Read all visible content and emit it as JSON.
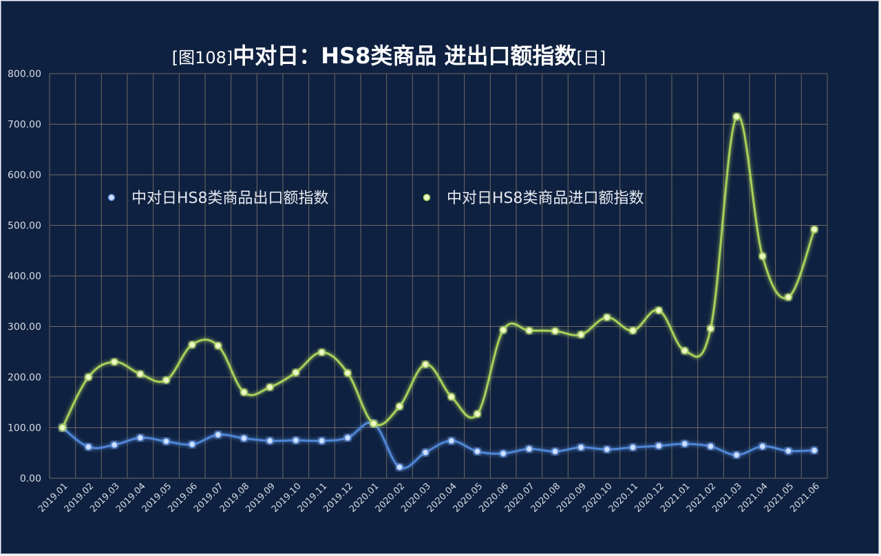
{
  "title": {
    "prefix": "[图108]",
    "main": "中对日：HS8类商品 进出口额指数",
    "suffix": "[日]"
  },
  "colors": {
    "background": "#0f2140",
    "grid": "#6e6a62",
    "axis_text": "#d8dde6",
    "export": "#4f86d6",
    "import": "#a8d05a"
  },
  "chart_data": {
    "type": "line",
    "title": "[图108]中对日：HS8类商品 进出口额指数[日]",
    "xlabel": "",
    "ylabel": "",
    "ylim": [
      0,
      800
    ],
    "yticks": [
      "0.00",
      "100.00",
      "200.00",
      "300.00",
      "400.00",
      "500.00",
      "600.00",
      "700.00",
      "800.00"
    ],
    "grid": true,
    "legend_position": "upper-left",
    "categories": [
      "2019.01",
      "2019.02",
      "2019.03",
      "2019.04",
      "2019.05",
      "2019.06",
      "2019.07",
      "2019.08",
      "2019.09",
      "2019.10",
      "2019.11",
      "2019.12",
      "2020.01",
      "2020.02",
      "2020.03",
      "2020.04",
      "2020.05",
      "2020.06",
      "2020.07",
      "2020.08",
      "2020.09",
      "2020.10",
      "2020.11",
      "2020.12",
      "2021.01",
      "2021.02",
      "2021.03",
      "2021.04",
      "2021.05",
      "2021.06"
    ],
    "series": [
      {
        "name": "中对日HS8类商品出口额指数",
        "values": [
          100,
          62,
          66,
          80,
          73,
          67,
          86,
          79,
          74,
          75,
          74,
          80,
          108,
          22,
          51,
          74,
          53,
          49,
          58,
          53,
          61,
          57,
          61,
          64,
          68,
          63,
          46,
          63,
          54,
          55
        ]
      },
      {
        "name": "中对日HS8类商品进口额指数",
        "values": [
          100,
          200,
          230,
          206,
          194,
          264,
          262,
          170,
          180,
          209,
          249,
          208,
          108,
          142,
          225,
          161,
          127,
          293,
          292,
          291,
          284,
          318,
          292,
          332,
          252,
          296,
          715,
          439,
          358,
          492
        ]
      }
    ]
  }
}
